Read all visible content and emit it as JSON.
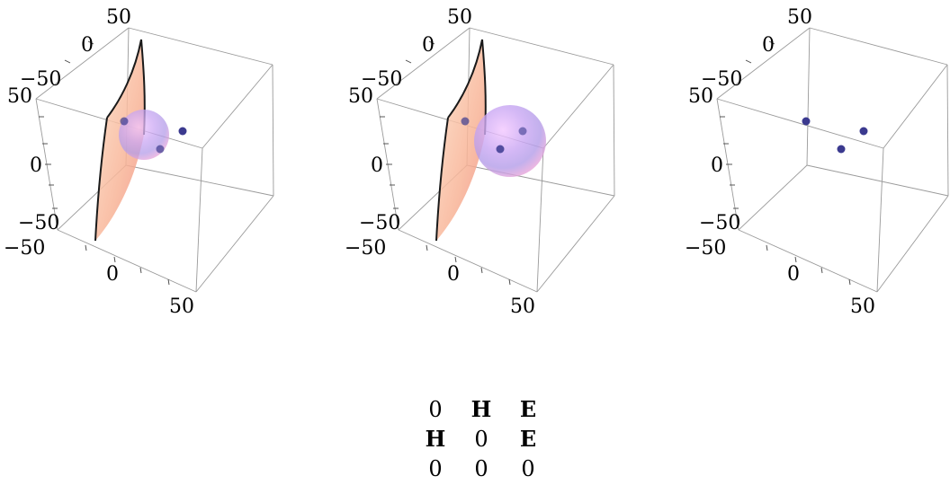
{
  "panels": [
    {
      "ticks": {
        "top": "50",
        "upper_left": "0",
        "upper_mid": "−50",
        "upper_side": "50",
        "middle": "0",
        "lower_side": "−50",
        "lower_mid": "−50",
        "bottom_left": "0",
        "bottom_right": "50"
      },
      "surface": true,
      "sphere": "small",
      "points": 3
    },
    {
      "ticks": {
        "top": "50",
        "upper_left": "0",
        "upper_mid": "−50",
        "upper_side": "50",
        "middle": "0",
        "lower_side": "−50",
        "lower_mid": "−50",
        "bottom_left": "0",
        "bottom_right": "50"
      },
      "surface": true,
      "sphere": "large",
      "points": 3
    },
    {
      "ticks": {
        "top": "50",
        "upper_left": "0",
        "upper_mid": "−50",
        "upper_side": "50",
        "middle": "0",
        "lower_side": "−50",
        "lower_mid": "−50",
        "bottom_left": "0",
        "bottom_right": "50"
      },
      "surface": false,
      "sphere": "none",
      "points": 3
    }
  ],
  "matrix": [
    [
      "0",
      "H",
      "E"
    ],
    [
      "H",
      "0",
      "E"
    ],
    [
      "0",
      "0",
      "0"
    ]
  ],
  "colors": {
    "point": "#3b3a8f",
    "surface": "#f6b99a",
    "box": "#9a9a9a"
  }
}
